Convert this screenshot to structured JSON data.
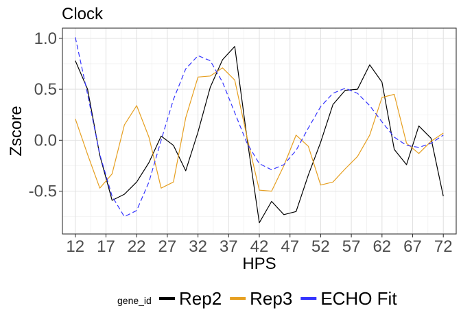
{
  "chart_data": {
    "type": "line",
    "title": "Clock",
    "xlabel": "HPS",
    "ylabel": "Zscore",
    "xlim": [
      9.9,
      74.1
    ],
    "ylim": [
      -0.92,
      1.1
    ],
    "xticks": [
      12,
      17,
      22,
      27,
      32,
      37,
      42,
      47,
      52,
      57,
      62,
      67,
      72
    ],
    "yticks": [
      -0.5,
      0.0,
      0.5,
      1.0
    ],
    "ytick_labels": [
      "-0.5",
      "0.0",
      "0.5",
      "1.0"
    ],
    "grid": true,
    "legend": {
      "title": "gene_id",
      "position": "bottom"
    },
    "series": [
      {
        "name": "Rep2",
        "color": "#000000",
        "dash": "solid",
        "x": [
          12,
          14,
          16,
          18,
          20,
          22,
          24,
          26,
          28,
          30,
          32,
          34,
          36,
          38,
          40,
          42,
          44,
          46,
          48,
          50,
          52,
          54,
          56,
          58,
          60,
          62,
          64,
          66,
          68,
          70,
          72
        ],
        "y": [
          0.78,
          0.5,
          -0.15,
          -0.59,
          -0.53,
          -0.41,
          -0.22,
          0.04,
          -0.05,
          -0.3,
          0.08,
          0.52,
          0.79,
          0.92,
          0.02,
          -0.81,
          -0.6,
          -0.73,
          -0.7,
          -0.34,
          -0.02,
          0.35,
          0.49,
          0.5,
          0.74,
          0.57,
          -0.09,
          -0.24,
          0.14,
          0.02,
          -0.55
        ]
      },
      {
        "name": "Rep3",
        "color": "#e69f20",
        "dash": "solid",
        "x": [
          12,
          14,
          16,
          18,
          20,
          22,
          24,
          26,
          28,
          30,
          32,
          34,
          36,
          38,
          40,
          42,
          44,
          46,
          48,
          50,
          52,
          54,
          56,
          58,
          60,
          62,
          64,
          66,
          68,
          70,
          72
        ],
        "y": [
          0.21,
          -0.14,
          -0.47,
          -0.33,
          0.15,
          0.34,
          0.03,
          -0.47,
          -0.41,
          0.22,
          0.62,
          0.63,
          0.71,
          0.59,
          0.03,
          -0.49,
          -0.5,
          -0.25,
          0.05,
          -0.06,
          -0.44,
          -0.41,
          -0.28,
          -0.16,
          0.05,
          0.42,
          0.45,
          -0.03,
          -0.13,
          -0.01,
          0.07
        ]
      },
      {
        "name": "ECHO Fit",
        "color": "#3333ff",
        "dash": "dashed",
        "x": [
          12,
          14,
          16,
          18,
          20,
          22,
          24,
          26,
          28,
          30,
          32,
          34,
          36,
          38,
          40,
          42,
          44,
          46,
          48,
          50,
          52,
          54,
          56,
          58,
          60,
          62,
          64,
          66,
          68,
          70,
          72
        ],
        "y": [
          1.01,
          0.45,
          -0.14,
          -0.55,
          -0.75,
          -0.69,
          -0.41,
          0.0,
          0.4,
          0.7,
          0.83,
          0.78,
          0.57,
          0.27,
          -0.03,
          -0.23,
          -0.29,
          -0.24,
          -0.1,
          0.12,
          0.33,
          0.46,
          0.51,
          0.46,
          0.34,
          0.18,
          0.03,
          -0.05,
          -0.07,
          -0.03,
          0.05
        ]
      }
    ]
  }
}
